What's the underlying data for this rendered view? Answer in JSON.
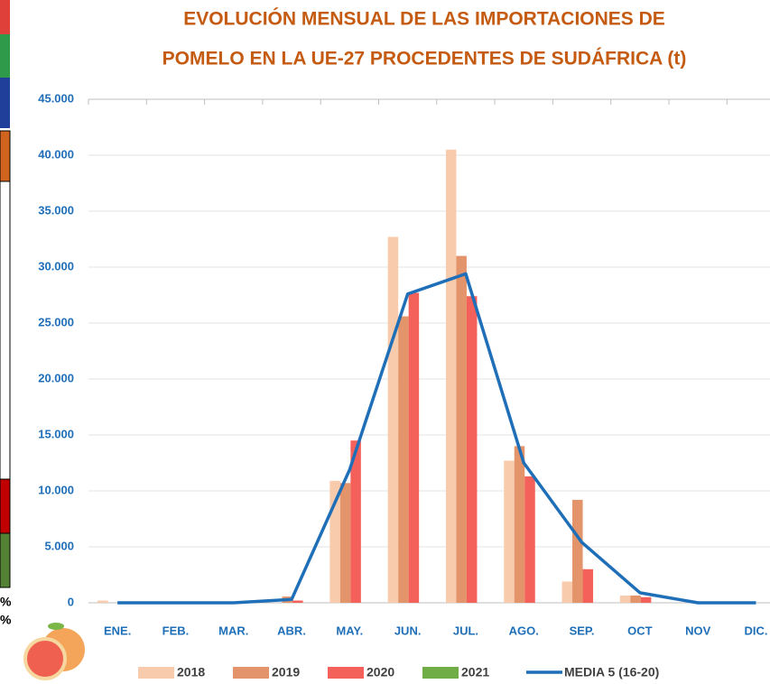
{
  "chart_data": {
    "type": "bar",
    "title": [
      "EVOLUCIÓN MENSUAL DE LAS IMPORTACIONES DE",
      "POMELO EN LA UE-27 PROCEDENTES DE SUDÁFRICA (t)"
    ],
    "categories": [
      "ENE.",
      "FEB.",
      "MAR.",
      "ABR.",
      "MAY.",
      "JUN.",
      "JUL.",
      "AGO.",
      "SEP.",
      "OCT",
      "NOV",
      "DIC."
    ],
    "series": [
      {
        "name": "2018",
        "color": "#f8cbad",
        "values": [
          200,
          0,
          0,
          0,
          10900,
          32700,
          40500,
          12700,
          1900,
          650,
          0,
          0
        ]
      },
      {
        "name": "2019",
        "color": "#e4946a",
        "values": [
          0,
          0,
          0,
          560,
          10700,
          25600,
          31000,
          14000,
          9200,
          650,
          0,
          0
        ]
      },
      {
        "name": "2020",
        "color": "#f4605a",
        "values": [
          0,
          0,
          0,
          200,
          14500,
          27700,
          27400,
          11300,
          3000,
          500,
          0,
          0
        ]
      },
      {
        "name": "2021",
        "color": "#70ad47",
        "values": [
          0,
          0,
          0,
          0,
          0,
          0,
          0,
          0,
          0,
          0,
          0,
          0
        ]
      },
      {
        "name": "MEDIA 5 (16-20)",
        "type": "line",
        "color": "#1f6fb8",
        "values": [
          0,
          0,
          0,
          300,
          11900,
          27600,
          29400,
          12500,
          5400,
          900,
          0,
          0
        ]
      }
    ],
    "ylim": [
      0,
      45000
    ],
    "yticks": [
      {
        "value": 0,
        "label": "0"
      },
      {
        "value": 5000,
        "label": "5.000"
      },
      {
        "value": 10000,
        "label": "10.000"
      },
      {
        "value": 15000,
        "label": "15.000"
      },
      {
        "value": 20000,
        "label": "20.000"
      },
      {
        "value": 25000,
        "label": "25.000"
      },
      {
        "value": 30000,
        "label": "30.000"
      },
      {
        "value": 35000,
        "label": "35.000"
      },
      {
        "value": 40000,
        "label": "40.000"
      },
      {
        "value": 45000,
        "label": "45.000"
      }
    ],
    "grid": true,
    "legend": "bottom"
  },
  "sidebar": {
    "labels": [
      "%",
      "%"
    ]
  }
}
